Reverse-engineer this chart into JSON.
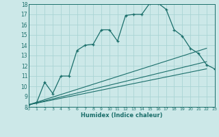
{
  "title": "",
  "xlabel": "Humidex (Indice chaleur)",
  "xlim": [
    0,
    23
  ],
  "ylim": [
    8,
    18
  ],
  "xticks": [
    0,
    1,
    2,
    3,
    4,
    5,
    6,
    7,
    8,
    9,
    10,
    11,
    12,
    13,
    14,
    15,
    16,
    17,
    18,
    19,
    20,
    21,
    22,
    23
  ],
  "yticks": [
    8,
    9,
    10,
    11,
    12,
    13,
    14,
    15,
    16,
    17,
    18
  ],
  "bg_color": "#cce8e8",
  "line_color": "#1a6e6a",
  "grid_color": "#aad4d4",
  "line1_x": [
    0,
    1,
    2,
    3,
    4,
    5,
    6,
    7,
    8,
    9,
    10,
    11,
    12,
    13,
    14,
    15,
    16,
    17,
    18,
    19,
    20,
    21,
    22,
    23
  ],
  "line1_y": [
    8.2,
    8.4,
    10.4,
    9.3,
    11.0,
    11.0,
    13.5,
    14.0,
    14.1,
    15.5,
    15.5,
    14.4,
    16.9,
    17.0,
    17.0,
    18.1,
    18.1,
    17.5,
    15.5,
    14.9,
    13.7,
    13.2,
    12.1,
    11.7
  ],
  "line2_x": [
    0,
    22
  ],
  "line2_y": [
    8.2,
    13.7
  ],
  "line3_x": [
    0,
    22
  ],
  "line3_y": [
    8.2,
    12.4
  ],
  "line4_x": [
    0,
    22
  ],
  "line4_y": [
    8.2,
    11.7
  ]
}
